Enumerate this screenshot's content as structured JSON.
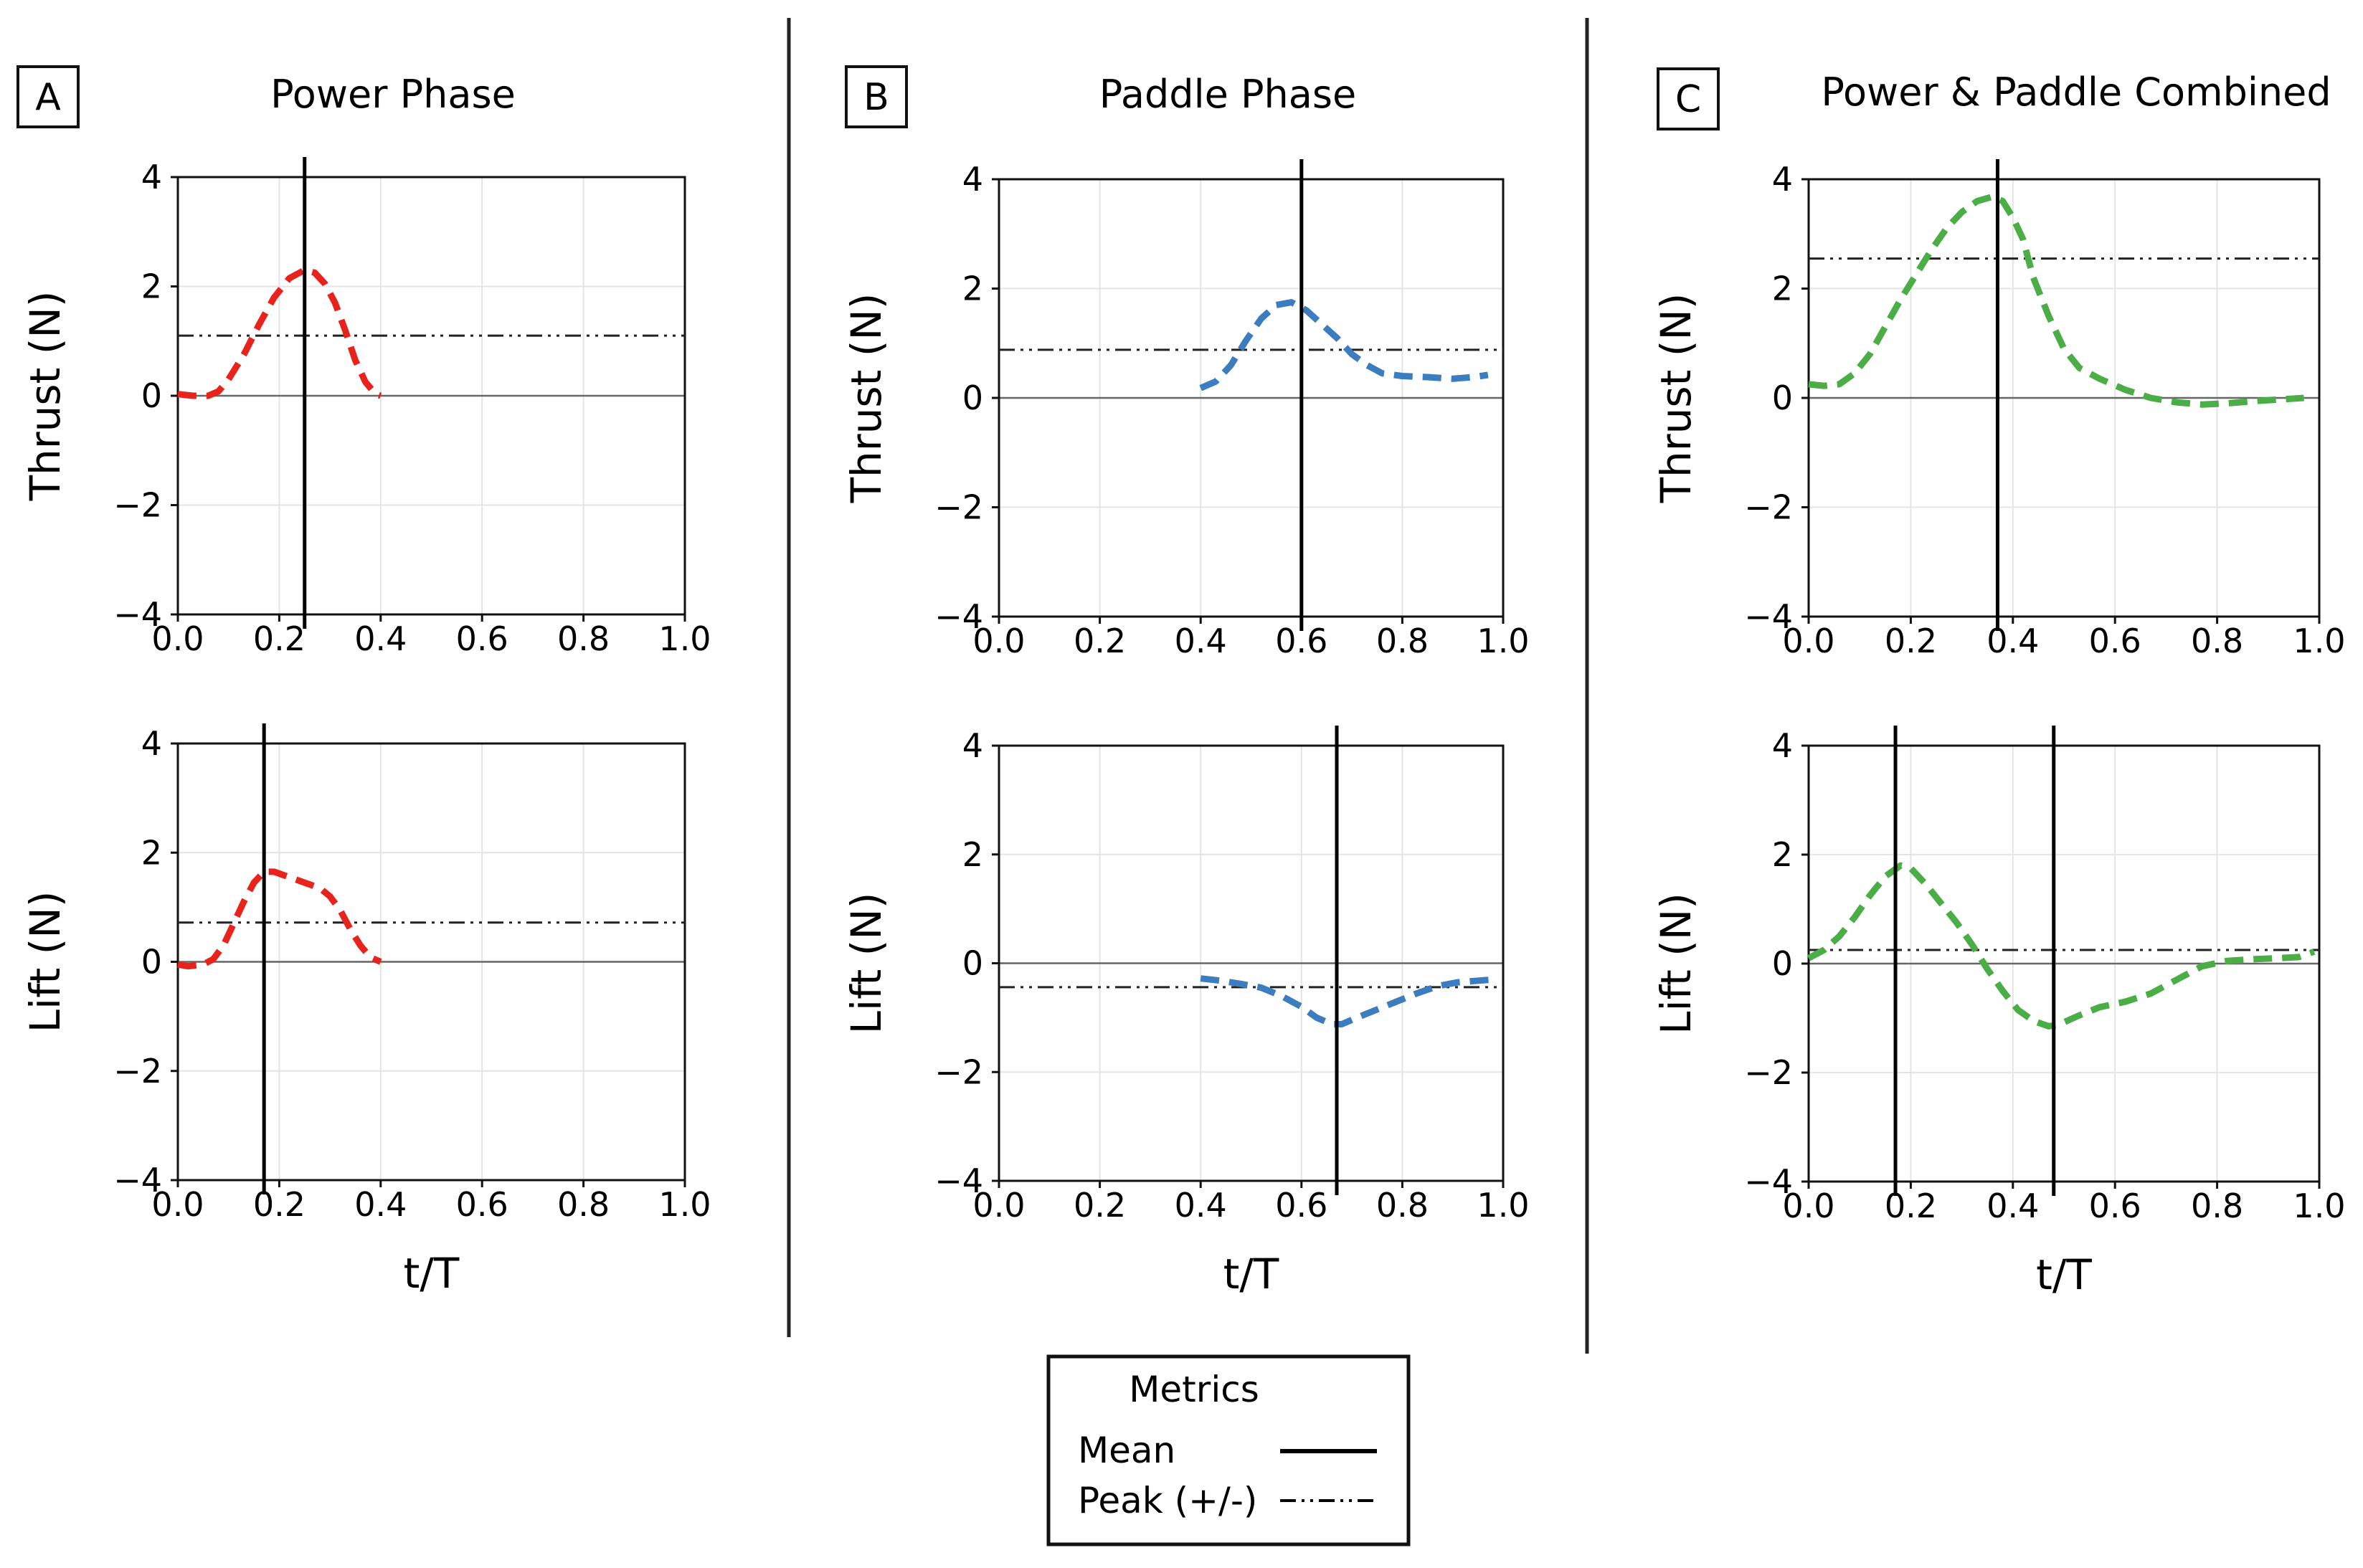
{
  "figure": {
    "xlabel": "t/T",
    "xticks": [
      "0.0",
      "0.2",
      "0.4",
      "0.6",
      "0.8",
      "1.0"
    ],
    "yticks": [
      "4",
      "2",
      "0",
      "−2",
      "−4"
    ],
    "legend": {
      "title": "Metrics",
      "items": [
        {
          "label": "Mean",
          "style": "solid"
        },
        {
          "label": "Peak (+/-)",
          "style": "dashdot"
        }
      ]
    }
  },
  "chart_data": [
    {
      "type": "line",
      "panel": "A",
      "title": "Power Phase",
      "ylabel": "Thrust (N)",
      "xlabel": "",
      "color": "#e8231b",
      "xlim": [
        0,
        1
      ],
      "ylim": [
        -4,
        4
      ],
      "x": [
        0.0,
        0.03,
        0.06,
        0.08,
        0.1,
        0.13,
        0.16,
        0.19,
        0.22,
        0.25,
        0.27,
        0.29,
        0.31,
        0.33,
        0.35,
        0.37,
        0.39,
        0.4
      ],
      "y": [
        0.03,
        0.0,
        0.0,
        0.08,
        0.3,
        0.75,
        1.3,
        1.8,
        2.15,
        2.3,
        2.25,
        2.05,
        1.7,
        1.2,
        0.65,
        0.25,
        0.03,
        0.0
      ],
      "mean_lines": [
        0.25
      ],
      "peak": 1.1
    },
    {
      "type": "line",
      "panel": "A",
      "title": "",
      "ylabel": "Lift (N)",
      "xlabel": "t/T",
      "color": "#e8231b",
      "xlim": [
        0,
        1
      ],
      "ylim": [
        -4,
        4
      ],
      "x": [
        0.0,
        0.02,
        0.05,
        0.07,
        0.09,
        0.11,
        0.13,
        0.15,
        0.17,
        0.19,
        0.22,
        0.25,
        0.28,
        0.3,
        0.32,
        0.34,
        0.36,
        0.38,
        0.4
      ],
      "y": [
        -0.05,
        -0.08,
        -0.05,
        0.05,
        0.3,
        0.7,
        1.1,
        1.45,
        1.65,
        1.65,
        1.55,
        1.45,
        1.35,
        1.2,
        0.95,
        0.6,
        0.3,
        0.08,
        0.0
      ],
      "mean_lines": [
        0.17
      ],
      "peak": 0.72
    },
    {
      "type": "line",
      "panel": "B",
      "title": "Paddle Phase",
      "ylabel": "Thrust (N)",
      "xlabel": "",
      "color": "#3b7dbf",
      "xlim": [
        0,
        1
      ],
      "ylim": [
        -4,
        4
      ],
      "x": [
        0.4,
        0.43,
        0.46,
        0.49,
        0.52,
        0.55,
        0.58,
        0.61,
        0.64,
        0.67,
        0.7,
        0.73,
        0.76,
        0.8,
        0.85,
        0.9,
        0.94,
        0.97
      ],
      "y": [
        0.18,
        0.3,
        0.6,
        1.05,
        1.45,
        1.7,
        1.75,
        1.6,
        1.35,
        1.1,
        0.8,
        0.6,
        0.45,
        0.4,
        0.38,
        0.35,
        0.38,
        0.42
      ],
      "mean_lines": [
        0.6
      ],
      "peak": 0.88
    },
    {
      "type": "line",
      "panel": "B",
      "title": "",
      "ylabel": "Lift (N)",
      "xlabel": "t/T",
      "color": "#3b7dbf",
      "xlim": [
        0,
        1
      ],
      "ylim": [
        -4,
        4
      ],
      "x": [
        0.4,
        0.44,
        0.48,
        0.52,
        0.56,
        0.6,
        0.63,
        0.66,
        0.68,
        0.71,
        0.75,
        0.79,
        0.83,
        0.87,
        0.91,
        0.95,
        0.98
      ],
      "y": [
        -0.28,
        -0.32,
        -0.38,
        -0.45,
        -0.6,
        -0.8,
        -1.0,
        -1.12,
        -1.12,
        -1.0,
        -0.85,
        -0.7,
        -0.55,
        -0.42,
        -0.35,
        -0.32,
        -0.3
      ],
      "mean_lines": [
        0.67
      ],
      "peak": -0.44
    },
    {
      "type": "line",
      "panel": "C",
      "title": "Power & Paddle Combined",
      "ylabel": "Thrust (N)",
      "xlabel": "",
      "color": "#4aad45",
      "xlim": [
        0,
        1
      ],
      "ylim": [
        -4,
        4
      ],
      "x": [
        0.0,
        0.03,
        0.06,
        0.09,
        0.12,
        0.15,
        0.18,
        0.21,
        0.24,
        0.27,
        0.3,
        0.33,
        0.36,
        0.38,
        0.4,
        0.42,
        0.44,
        0.47,
        0.5,
        0.53,
        0.57,
        0.62,
        0.67,
        0.72,
        0.77,
        0.82,
        0.87,
        0.92,
        0.97
      ],
      "y": [
        0.25,
        0.22,
        0.25,
        0.45,
        0.8,
        1.3,
        1.8,
        2.25,
        2.7,
        3.1,
        3.4,
        3.6,
        3.68,
        3.6,
        3.3,
        2.9,
        2.2,
        1.5,
        0.9,
        0.55,
        0.35,
        0.15,
        0.0,
        -0.08,
        -0.12,
        -0.1,
        -0.06,
        -0.03,
        0.0
      ],
      "mean_lines": [
        0.37
      ],
      "peak": 2.55
    },
    {
      "type": "line",
      "panel": "C",
      "title": "",
      "ylabel": "Lift (N)",
      "xlabel": "t/T",
      "color": "#4aad45",
      "xlim": [
        0,
        1
      ],
      "ylim": [
        -4,
        4
      ],
      "x": [
        0.0,
        0.03,
        0.06,
        0.09,
        0.12,
        0.15,
        0.18,
        0.2,
        0.23,
        0.26,
        0.29,
        0.32,
        0.35,
        0.38,
        0.41,
        0.44,
        0.47,
        0.49,
        0.53,
        0.57,
        0.62,
        0.67,
        0.72,
        0.77,
        0.82,
        0.87,
        0.92,
        0.96,
        0.99
      ],
      "y": [
        0.1,
        0.25,
        0.5,
        0.85,
        1.25,
        1.6,
        1.8,
        1.75,
        1.45,
        1.1,
        0.75,
        0.35,
        -0.1,
        -0.5,
        -0.85,
        -1.05,
        -1.15,
        -1.12,
        -0.95,
        -0.8,
        -0.7,
        -0.55,
        -0.3,
        -0.05,
        0.05,
        0.08,
        0.1,
        0.12,
        0.22
      ],
      "mean_lines": [
        0.17,
        0.48
      ],
      "peak": 0.25
    }
  ],
  "panels": [
    {
      "label": "A",
      "title": "Power Phase"
    },
    {
      "label": "B",
      "title": "Paddle Phase"
    },
    {
      "label": "C",
      "title": "Power & Paddle Combined"
    }
  ]
}
